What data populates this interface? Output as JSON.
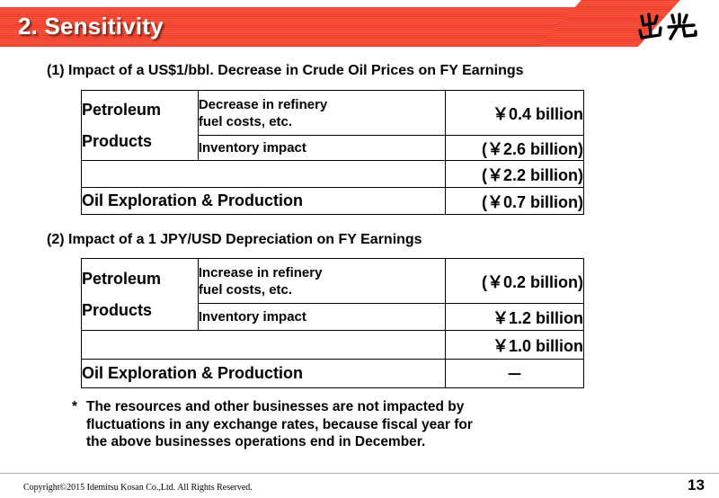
{
  "header": {
    "title": "2. Sensitivity",
    "logo_text": "出光"
  },
  "section1": {
    "heading": "(1) Impact of a US$1/bbl. Decrease in Crude Oil Prices on FY Earnings",
    "segment_line1": "Petroleum",
    "segment_line2": "Products",
    "rows": [
      {
        "item_line1": "Decrease in refinery",
        "item_line2": "fuel costs, etc.",
        "value": "￥0.4 billion"
      },
      {
        "item_line1": "Inventory impact",
        "value": "(￥2.6 billion)"
      },
      {
        "value": "(￥2.2 billion)"
      }
    ],
    "oil_label": "Oil Exploration & Production",
    "oil_value": "(￥0.7 billion)"
  },
  "section2": {
    "heading": "(2) Impact of a 1 JPY/USD Depreciation on FY Earnings",
    "segment_line1": "Petroleum",
    "segment_line2": "Products",
    "rows": [
      {
        "item_line1": "Increase in refinery",
        "item_line2": "fuel costs, etc.",
        "value": "(￥0.2 billion)"
      },
      {
        "item_line1": "Inventory impact",
        "value": "￥1.2 billion"
      },
      {
        "value": "￥1.0 billion"
      }
    ],
    "oil_label": "Oil Exploration & Production",
    "oil_value": "－"
  },
  "note": {
    "star": "*",
    "line1": "The resources and other businesses are not impacted by",
    "line2": "fluctuations in any exchange rates, because fiscal year for",
    "line3": "the above  businesses operations end in December."
  },
  "footer": {
    "copyright": "Copyright©2015 Idemitsu Kosan Co.,Ltd. All Rights Reserved.",
    "page": "13"
  },
  "colors": {
    "title_band": "#f23a24",
    "title_text": "#ffffff"
  }
}
